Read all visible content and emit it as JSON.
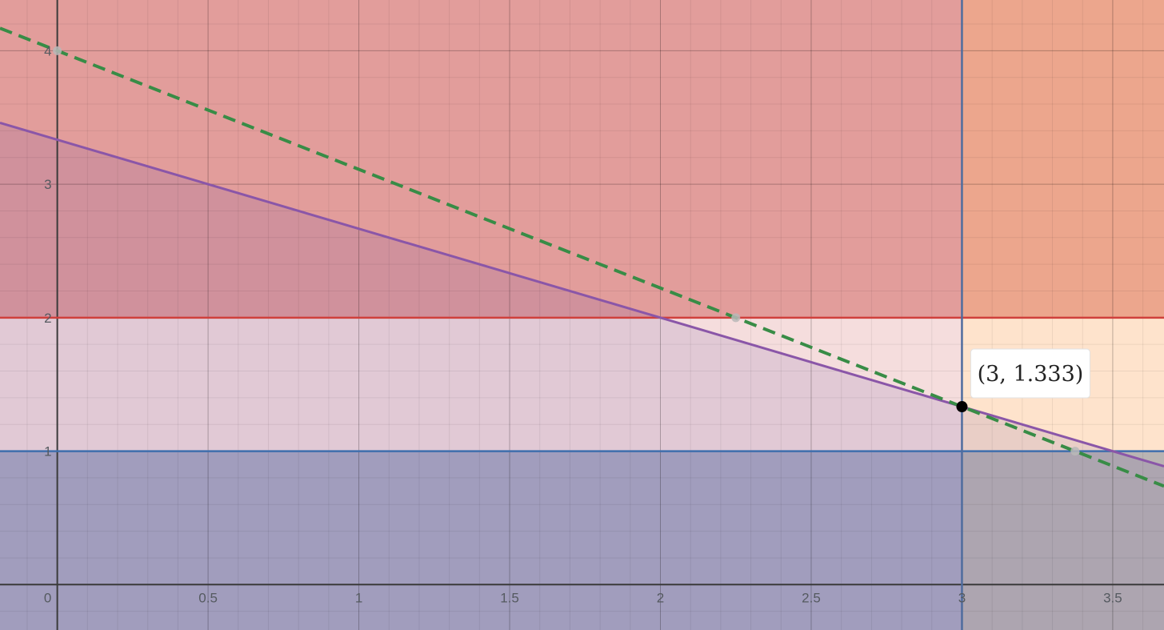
{
  "chart_data": {
    "type": "line",
    "xlim": [
      -0.19,
      3.67
    ],
    "ylim": [
      -0.34,
      4.38
    ],
    "grid": true,
    "x_ticks": [
      {
        "value": 0,
        "label": "0"
      },
      {
        "value": 0.5,
        "label": "0.5"
      },
      {
        "value": 1,
        "label": "1"
      },
      {
        "value": 1.5,
        "label": "1.5"
      },
      {
        "value": 2,
        "label": "2"
      },
      {
        "value": 2.5,
        "label": "2.5"
      },
      {
        "value": 3,
        "label": "3"
      },
      {
        "value": 3.5,
        "label": "3.5"
      }
    ],
    "y_ticks": [
      {
        "value": 1,
        "label": "1"
      },
      {
        "value": 2,
        "label": "2"
      },
      {
        "value": 3,
        "label": "3"
      },
      {
        "value": 4,
        "label": "4"
      }
    ],
    "regions": [
      {
        "kind": "y_above",
        "value": 2,
        "fill": "#c74440",
        "opacity": 0.42
      },
      {
        "kind": "y_below",
        "value": 1,
        "fill": "#2d70b3",
        "opacity": 0.42
      },
      {
        "kind": "x_left",
        "value": 3,
        "fill": "#c74440",
        "opacity": 0.18
      },
      {
        "kind": "x_right",
        "value": 3,
        "fill": "#fa7e19",
        "opacity": 0.22
      },
      {
        "kind": "y_below_line",
        "slope": -0.6667,
        "intercept": 3.3333,
        "fill": "#6042a6",
        "opacity": 0.13
      }
    ],
    "lines": [
      {
        "kind": "horizontal",
        "value": 2,
        "color": "#d0403c",
        "width": 2.5,
        "dashed": false
      },
      {
        "kind": "horizontal",
        "value": 1,
        "color": "#3e6ead",
        "width": 2.5,
        "dashed": false
      },
      {
        "kind": "vertical",
        "value": 3,
        "color": "#4f6c9e",
        "width": 2.5,
        "dashed": false
      },
      {
        "kind": "sloped",
        "slope": -0.6667,
        "intercept": 3.3333,
        "color": "#8a56a8",
        "width": 3,
        "dashed": false
      },
      {
        "kind": "sloped",
        "slope": -0.8889,
        "intercept": 4.0,
        "color": "#388c46",
        "width": 4,
        "dashed": true
      }
    ],
    "intercept_points": [
      {
        "x": 0,
        "y": 4
      },
      {
        "x": 2.25,
        "y": 2
      },
      {
        "x": 3.375,
        "y": 1
      }
    ],
    "highlight_point": {
      "x": 3,
      "y": 1.333,
      "label": "(3, 1.333)"
    }
  }
}
